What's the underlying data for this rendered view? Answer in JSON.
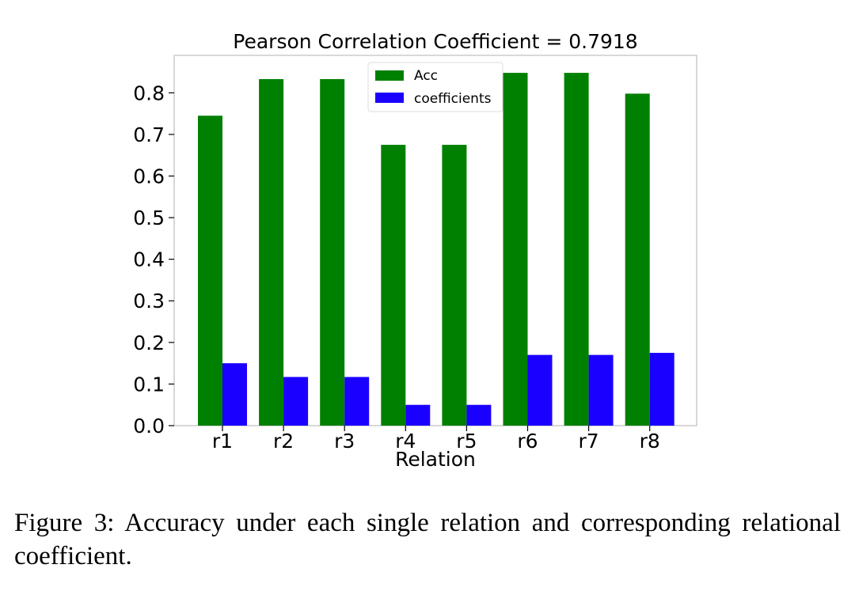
{
  "chart_data": {
    "type": "bar",
    "title": "Pearson Correlation Coefficient = 0.7918",
    "xlabel": "Relation",
    "ylabel": "",
    "categories": [
      "r1",
      "r2",
      "r3",
      "r4",
      "r5",
      "r6",
      "r7",
      "r8"
    ],
    "series": [
      {
        "name": "Acc",
        "color": "#008000",
        "values": [
          0.745,
          0.833,
          0.833,
          0.675,
          0.675,
          0.848,
          0.848,
          0.798
        ]
      },
      {
        "name": "coefficients",
        "color": "#1a00ff",
        "values": [
          0.15,
          0.117,
          0.117,
          0.05,
          0.05,
          0.17,
          0.17,
          0.175
        ]
      }
    ],
    "ylim": [
      0,
      0.89
    ],
    "yticks": [
      0.0,
      0.1,
      0.2,
      0.3,
      0.4,
      0.5,
      0.6,
      0.7,
      0.8
    ],
    "ytick_labels": [
      "0.0",
      "0.1",
      "0.2",
      "0.3",
      "0.4",
      "0.5",
      "0.6",
      "0.7",
      "0.8"
    ],
    "grid": false,
    "legend_position": "top-center"
  },
  "caption": "Figure 3: Accuracy under each single relation and corresponding relational coefficient."
}
